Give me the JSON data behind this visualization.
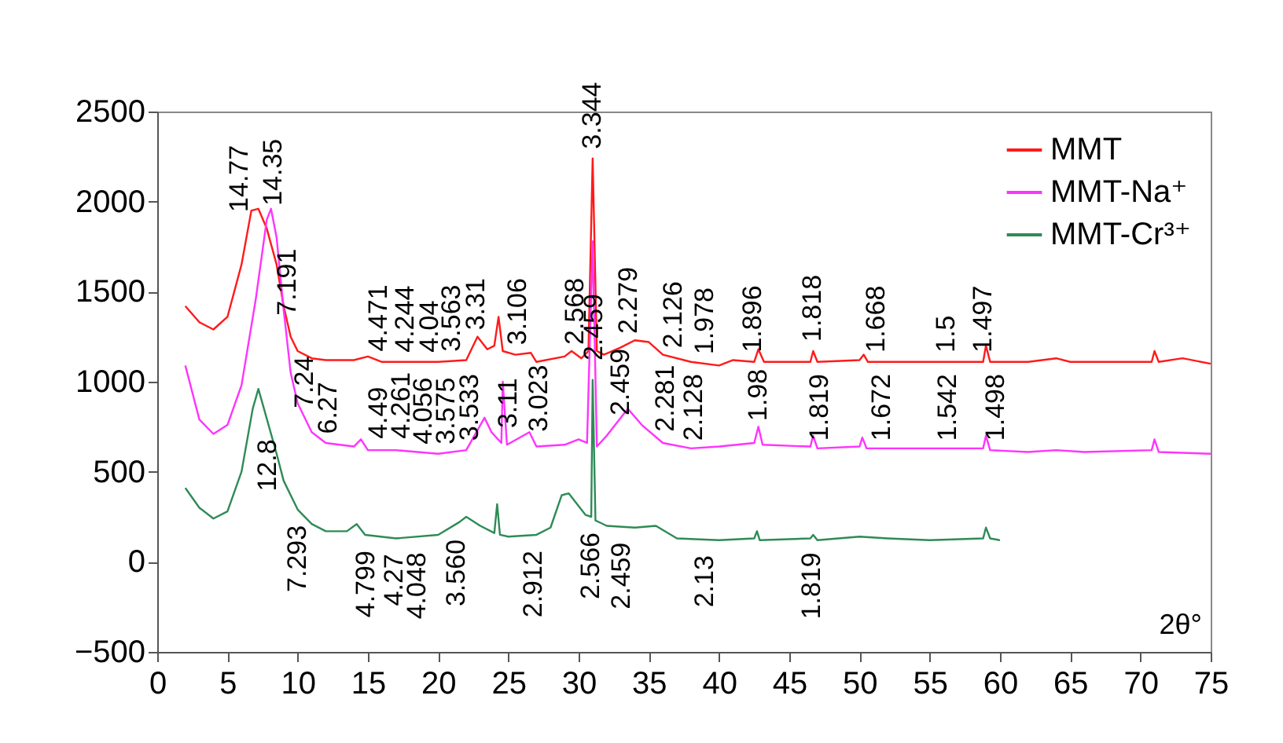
{
  "chart_data": {
    "type": "line",
    "xlabel": "2θ°",
    "xlim": [
      0,
      75
    ],
    "xticks": [
      0,
      5,
      10,
      15,
      20,
      25,
      30,
      35,
      40,
      45,
      50,
      55,
      60,
      65,
      70,
      75
    ],
    "ylim": [
      -500,
      2500
    ],
    "yticks": [
      -500,
      0,
      500,
      1000,
      1500,
      2000,
      2500
    ],
    "legend": "top right",
    "series": [
      {
        "name": "MMT",
        "color": "#ff1a1a",
        "x": [
          2,
          3,
          4,
          5,
          6,
          6.7,
          7.2,
          7.8,
          8.5,
          9,
          9.5,
          10,
          11,
          12,
          14,
          15,
          16,
          18,
          20,
          22,
          22.8,
          23.5,
          24,
          24.3,
          24.6,
          25.5,
          26.6,
          27,
          29,
          29.5,
          30.2,
          30.7,
          31,
          31.3,
          31.8,
          33,
          34,
          35,
          36,
          38,
          40,
          41,
          42.5,
          42.8,
          43.2,
          46.5,
          46.7,
          47,
          50,
          50.3,
          50.6,
          54,
          58.8,
          59,
          59.3,
          62,
          64,
          65,
          70.8,
          71,
          71.3,
          73,
          75
        ],
        "values": [
          1420,
          1330,
          1290,
          1360,
          1650,
          1950,
          1960,
          1850,
          1650,
          1420,
          1250,
          1170,
          1130,
          1120,
          1120,
          1140,
          1110,
          1110,
          1110,
          1120,
          1250,
          1180,
          1200,
          1360,
          1170,
          1150,
          1160,
          1110,
          1140,
          1170,
          1130,
          1170,
          2240,
          1170,
          1150,
          1190,
          1230,
          1220,
          1150,
          1110,
          1090,
          1120,
          1110,
          1180,
          1110,
          1110,
          1170,
          1110,
          1120,
          1150,
          1110,
          1110,
          1110,
          1200,
          1110,
          1110,
          1130,
          1110,
          1110,
          1170,
          1110,
          1130,
          1100
        ]
      },
      {
        "name": "MMT-Na⁺",
        "color": "#ff33ff",
        "x": [
          2,
          3,
          4,
          5,
          6,
          7,
          7.8,
          8.1,
          8.5,
          9,
          9.5,
          10,
          11,
          12,
          14,
          14.5,
          15,
          17,
          20,
          22,
          23.3,
          23.8,
          24.5,
          24.6,
          24.9,
          26.5,
          27,
          29,
          30,
          30.6,
          31,
          31.3,
          32,
          33.5,
          34.5,
          36,
          38,
          40,
          42.5,
          42.8,
          43.1,
          46.5,
          46.7,
          47,
          50,
          50.2,
          50.5,
          54,
          58.8,
          59,
          59.3,
          62,
          64,
          66,
          70.8,
          71,
          71.3,
          75
        ],
        "values": [
          1090,
          790,
          710,
          760,
          980,
          1450,
          1900,
          1960,
          1800,
          1400,
          1050,
          880,
          720,
          660,
          640,
          680,
          620,
          620,
          600,
          620,
          800,
          720,
          660,
          1000,
          650,
          720,
          640,
          650,
          680,
          660,
          1780,
          640,
          700,
          850,
          760,
          660,
          630,
          640,
          660,
          750,
          650,
          640,
          700,
          630,
          640,
          690,
          630,
          630,
          630,
          700,
          620,
          610,
          620,
          610,
          620,
          680,
          610,
          600
        ]
      },
      {
        "name": "MMT-Cr³⁺",
        "color": "#2e8b57",
        "x": [
          2,
          3,
          4,
          5,
          6,
          6.8,
          7.2,
          7.6,
          8.5,
          9,
          10,
          11,
          12,
          13.5,
          14.2,
          14.8,
          17,
          20,
          21.5,
          22,
          23,
          24,
          24.2,
          24.4,
          25,
          27,
          28,
          28.8,
          29.3,
          30.5,
          30.9,
          31,
          31.2,
          32,
          34,
          35.5,
          37,
          40,
          42.5,
          42.7,
          42.9,
          46.5,
          46.7,
          47,
          50,
          52,
          55,
          58.8,
          59,
          59.3,
          60
        ],
        "values": [
          410,
          300,
          240,
          280,
          500,
          850,
          960,
          850,
          600,
          450,
          290,
          210,
          170,
          170,
          210,
          150,
          130,
          150,
          220,
          250,
          200,
          160,
          320,
          150,
          140,
          150,
          190,
          370,
          380,
          260,
          250,
          1010,
          230,
          200,
          190,
          200,
          130,
          120,
          130,
          170,
          120,
          130,
          150,
          120,
          140,
          130,
          120,
          130,
          190,
          130,
          120
        ]
      }
    ],
    "annotations": [
      {
        "text": "14.77",
        "x": 5.9,
        "y": 1890
      },
      {
        "text": "14.35",
        "x": 8.3,
        "y": 1925
      },
      {
        "text": "7.191",
        "x": 9.3,
        "y": 1315
      },
      {
        "text": "4.471",
        "x": 15.8,
        "y": 1116
      },
      {
        "text": "4.244",
        "x": 17.7,
        "y": 1110
      },
      {
        "text": "4.04",
        "x": 19.4,
        "y": 1110
      },
      {
        "text": "3.563",
        "x": 21,
        "y": 1115
      },
      {
        "text": "3.31",
        "x": 22.7,
        "y": 1234
      },
      {
        "text": "3.106",
        "x": 25.7,
        "y": 1152
      },
      {
        "text": "3.344",
        "x": 31,
        "y": 2240
      },
      {
        "text": "2.568",
        "x": 29.8,
        "y": 1153
      },
      {
        "text": "2.459",
        "x": 31.1,
        "y": 1065
      },
      {
        "text": "2.279",
        "x": 33.6,
        "y": 1214
      },
      {
        "text": "2.126",
        "x": 36.8,
        "y": 1134
      },
      {
        "text": "1.978",
        "x": 39,
        "y": 1100
      },
      {
        "text": "1.896",
        "x": 42.4,
        "y": 1111
      },
      {
        "text": "1.818",
        "x": 46.7,
        "y": 1170
      },
      {
        "text": "1.668",
        "x": 51.2,
        "y": 1110
      },
      {
        "text": "1.5",
        "x": 56.2,
        "y": 1110
      },
      {
        "text": "1.497",
        "x": 58.8,
        "y": 1110
      },
      {
        "text": "7.24",
        "x": 10.5,
        "y": 800
      },
      {
        "text": "6.27",
        "x": 12.2,
        "y": 658
      },
      {
        "text": "4.49",
        "x": 15.8,
        "y": 630
      },
      {
        "text": "4.261",
        "x": 17.4,
        "y": 630
      },
      {
        "text": "4.056",
        "x": 19,
        "y": 600
      },
      {
        "text": "3.575",
        "x": 20.6,
        "y": 600
      },
      {
        "text": "3.533",
        "x": 22.3,
        "y": 620
      },
      {
        "text": "3.11",
        "x": 25,
        "y": 690
      },
      {
        "text": "3.023",
        "x": 27.2,
        "y": 670
      },
      {
        "text": "2.459",
        "x": 33,
        "y": 760
      },
      {
        "text": "2.281",
        "x": 36.2,
        "y": 670
      },
      {
        "text": "2.128",
        "x": 38.2,
        "y": 620
      },
      {
        "text": "1.98",
        "x": 42.8,
        "y": 730
      },
      {
        "text": "1.819",
        "x": 47.2,
        "y": 620
      },
      {
        "text": "1.672",
        "x": 51.6,
        "y": 620
      },
      {
        "text": "1.542",
        "x": 56.3,
        "y": 620
      },
      {
        "text": "1.498",
        "x": 59.7,
        "y": 620
      },
      {
        "text": "12.8",
        "x": 7.9,
        "y": 767
      },
      {
        "text": "7.293",
        "x": 10,
        "y": 290
      },
      {
        "text": "4.799",
        "x": 14.9,
        "y": 149
      },
      {
        "text": "4.27",
        "x": 16.9,
        "y": 131
      },
      {
        "text": "4.048",
        "x": 18.5,
        "y": 140
      },
      {
        "text": "3.560",
        "x": 21.3,
        "y": 211
      },
      {
        "text": "2.912",
        "x": 26.8,
        "y": 149
      },
      {
        "text": "2.566",
        "x": 30.9,
        "y": 250
      },
      {
        "text": "2.459",
        "x": 33.1,
        "y": 195
      },
      {
        "text": "2.13",
        "x": 39,
        "y": 123
      },
      {
        "text": "1.819",
        "x": 46.6,
        "y": 140
      }
    ]
  }
}
